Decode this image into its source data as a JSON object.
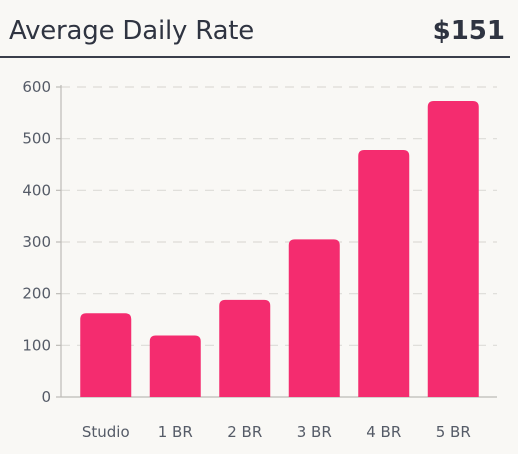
{
  "header": {
    "title": "Average Daily Rate",
    "value": "$151"
  },
  "colors": {
    "bar": "#f42c6f",
    "grid": "#dddbd7",
    "axis": "#bdbbb7",
    "text": "#2f3441"
  },
  "chart_data": {
    "type": "bar",
    "categories": [
      "Studio",
      "1 BR",
      "2 BR",
      "3 BR",
      "4 BR",
      "5 BR"
    ],
    "values": [
      162,
      119,
      188,
      305,
      478,
      573
    ],
    "ylim": [
      0,
      600
    ],
    "yticks": [
      0,
      100,
      200,
      300,
      400,
      500,
      600
    ],
    "grid": true,
    "gridStyle": "dashed",
    "legend": "none"
  }
}
